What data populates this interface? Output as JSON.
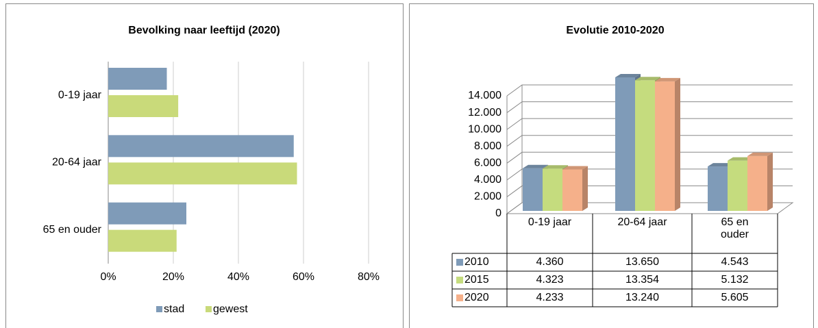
{
  "chart_data": [
    {
      "type": "hbar",
      "title": "Bevolking naar leeftijd (2020)",
      "categories": [
        "0-19 jaar",
        "20-64 jaar",
        "65 en ouder"
      ],
      "series": [
        {
          "name": "stad",
          "color": "#7f9bb8",
          "values": [
            18,
            57,
            24
          ]
        },
        {
          "name": "gewest",
          "color": "#c9da7a",
          "values": [
            21.5,
            58,
            21
          ]
        }
      ],
      "xlim": [
        0,
        80
      ],
      "xticks": [
        {
          "value": 0,
          "label": "0%"
        },
        {
          "value": 20,
          "label": "20%"
        },
        {
          "value": 40,
          "label": "40%"
        },
        {
          "value": 60,
          "label": "60%"
        },
        {
          "value": 80,
          "label": "80%"
        }
      ],
      "grid": true,
      "legend": "bottom"
    },
    {
      "type": "bar3d",
      "title": "Evolutie 2010-2020",
      "categories": [
        "0-19 jaar",
        "20-64 jaar",
        "65 en ouder"
      ],
      "series": [
        {
          "name": "2010",
          "color": "#7f9bb8",
          "values": [
            4360,
            13650,
            4543
          ],
          "value_labels": [
            "4.360",
            "13.650",
            "4.543"
          ]
        },
        {
          "name": "2015",
          "color": "#c5dc7e",
          "values": [
            4323,
            13354,
            5132
          ],
          "value_labels": [
            "4.323",
            "13.354",
            "5.132"
          ]
        },
        {
          "name": "2020",
          "color": "#f5b08a",
          "values": [
            4233,
            13240,
            5605
          ],
          "value_labels": [
            "4.233",
            "13.240",
            "5.605"
          ]
        }
      ],
      "ylim": [
        0,
        14000
      ],
      "yticks": [
        0,
        {
          "value": 2000,
          "label": "2.000"
        },
        {
          "value": 4000,
          "label": "4.000"
        },
        {
          "value": 6000,
          "label": "6.000"
        },
        {
          "value": 8000,
          "label": "8.000"
        },
        {
          "value": 10000,
          "label": "10.000"
        },
        {
          "value": 12000,
          "label": "12.000"
        },
        {
          "value": 14000,
          "label": "14.000"
        }
      ],
      "grid": true,
      "legend": "table"
    }
  ]
}
